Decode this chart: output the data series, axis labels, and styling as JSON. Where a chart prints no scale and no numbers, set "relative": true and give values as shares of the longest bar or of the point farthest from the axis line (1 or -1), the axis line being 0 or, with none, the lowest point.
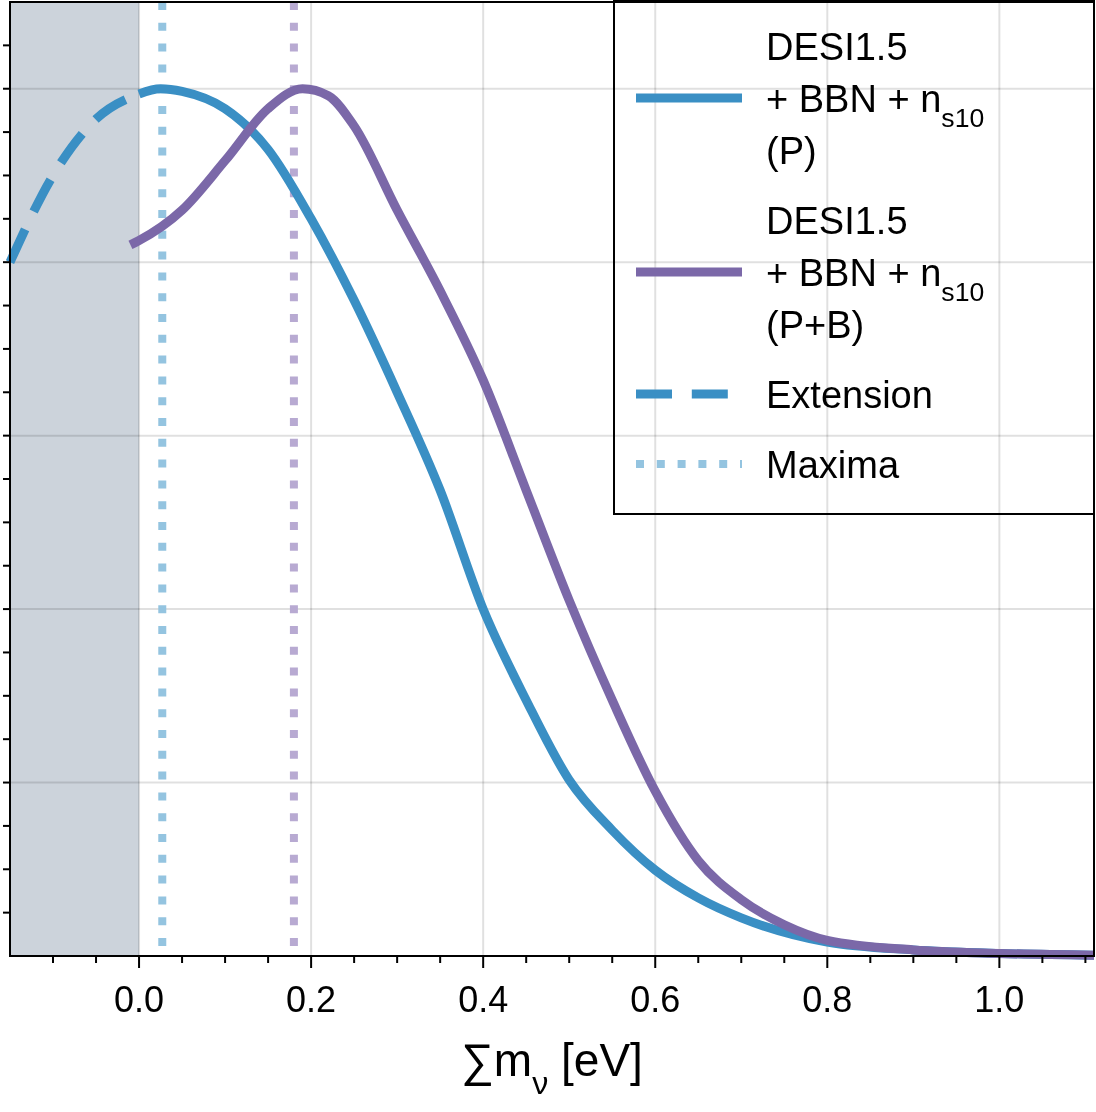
{
  "chart_data": {
    "type": "line",
    "xlabel": "∑m$_{ν}$ [eV]",
    "relative": true,
    "grid": true,
    "legend": "top right",
    "tick_labels": "x",
    "xlim": [
      -0.15,
      1.11
    ],
    "xticks": [
      {
        "value": -0.1,
        "label": null
      },
      {
        "value": -0.05,
        "label": null
      },
      {
        "value": 0,
        "label": "0.0"
      },
      {
        "value": 0.05,
        "label": null
      },
      {
        "value": 0.1,
        "label": null
      },
      {
        "value": 0.15,
        "label": null
      },
      {
        "value": 0.2,
        "label": "0.2"
      },
      {
        "value": 0.25,
        "label": null
      },
      {
        "value": 0.3,
        "label": null
      },
      {
        "value": 0.35,
        "label": null
      },
      {
        "value": 0.4,
        "label": "0.4"
      },
      {
        "value": 0.45,
        "label": null
      },
      {
        "value": 0.5,
        "label": null
      },
      {
        "value": 0.55,
        "label": null
      },
      {
        "value": 0.6,
        "label": "0.6"
      },
      {
        "value": 0.65,
        "label": null
      },
      {
        "value": 0.7,
        "label": null
      },
      {
        "value": 0.75,
        "label": null
      },
      {
        "value": 0.8,
        "label": "0.8"
      },
      {
        "value": 0.85,
        "label": null
      },
      {
        "value": 0.9,
        "label": null
      },
      {
        "value": 0.95,
        "label": null
      },
      {
        "value": 1.0,
        "label": "1.0"
      },
      {
        "value": 1.05,
        "label": null
      },
      {
        "value": 1.1,
        "label": null
      }
    ],
    "series": [
      {
        "name": "DESI1.5\n+ BBN + n$_{s10}$\n(P)",
        "color": "#3a8fc4",
        "x": [
          0,
          0.025,
          0.05,
          0.1,
          0.15,
          0.2,
          0.25,
          0.3,
          0.35,
          0.4,
          0.45,
          0.5,
          0.55,
          0.6,
          0.65,
          0.7,
          0.8,
          0.9,
          1.0,
          1.11
        ],
        "values": [
          0.994,
          1.0,
          0.997,
          0.977,
          0.93,
          0.85,
          0.756,
          0.65,
          0.537,
          0.4,
          0.295,
          0.203,
          0.145,
          0.099,
          0.067,
          0.044,
          0.016,
          0.007,
          0.003,
          0.001
        ]
      },
      {
        "name": "DESI1.5\n+ BBN + n$_{s10}$\n(P+B)",
        "color": "#7b68a8",
        "x": [
          -0.01,
          0,
          0.05,
          0.1,
          0.15,
          0.19,
          0.22,
          0.25,
          0.3,
          0.35,
          0.4,
          0.45,
          0.5,
          0.55,
          0.6,
          0.65,
          0.7,
          0.75,
          0.8,
          0.9,
          1.0,
          1.11
        ],
        "values": [
          0.82,
          0.825,
          0.86,
          0.917,
          0.977,
          1.0,
          0.992,
          0.957,
          0.86,
          0.767,
          0.664,
          0.537,
          0.41,
          0.295,
          0.19,
          0.11,
          0.065,
          0.036,
          0.018,
          0.007,
          0.003,
          0.001
        ]
      },
      {
        "name": "Extension",
        "color": "#3a8fc4",
        "line_style": "dashed",
        "x": [
          -0.15,
          -0.1,
          -0.05,
          0
        ],
        "values": [
          0.8,
          0.9,
          0.965,
          0.994
        ]
      }
    ],
    "bands": [
      {
        "axis": "x",
        "from": -0.15,
        "to": 0,
        "color": "#ccd3db"
      }
    ],
    "annotations": [
      "Maxima"
    ],
    "ref_lines": [
      {
        "axis": "x",
        "value": 0.027,
        "color": "#94c4e0",
        "line_style": "dotted"
      },
      {
        "axis": "x",
        "value": 0.18,
        "color": "#b8aad2",
        "line_style": "dotted"
      }
    ]
  }
}
